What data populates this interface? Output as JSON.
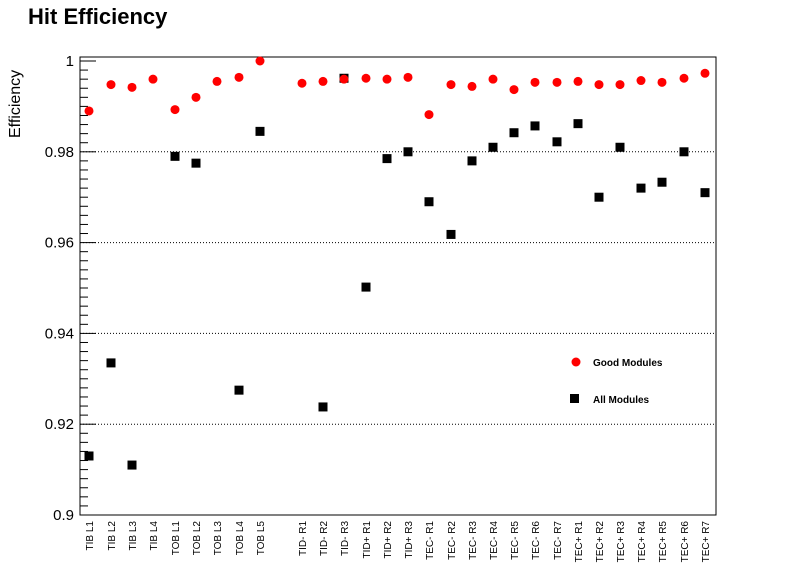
{
  "chart_data": {
    "type": "scatter",
    "title": "Hit Efficiency",
    "ylabel": "Efficiency",
    "xlabel": "",
    "ylim": [
      0.9,
      1.0
    ],
    "yticks": [
      0.9,
      0.92,
      0.94,
      0.96,
      0.98,
      1.0
    ],
    "ytick_labels": [
      "0.9",
      "0.92",
      "0.94",
      "0.96",
      "0.98",
      "1"
    ],
    "grid": "horizontal dotted",
    "legend_position": "right-middle",
    "categories": [
      "TIB L1",
      "TIB L2",
      "TIB L3",
      "TIB L4",
      "TOB L1",
      "TOB L2",
      "TOB L3",
      "TOB L4",
      "TOB L5",
      "TID- R1",
      "TID- R2",
      "TID- R3",
      "TID+ R1",
      "TID+ R2",
      "TID+ R3",
      "TEC- R1",
      "TEC- R2",
      "TEC- R3",
      "TEC- R4",
      "TEC- R5",
      "TEC- R6",
      "TEC- R7",
      "TEC+ R1",
      "TEC+ R2",
      "TEC+ R3",
      "TEC+ R4",
      "TEC+ R5",
      "TEC+ R6",
      "TEC+ R7"
    ],
    "series": [
      {
        "name": "Good Modules",
        "color": "#ff0000",
        "marker": "circle",
        "values": [
          0.989,
          0.9948,
          0.9942,
          0.996,
          0.9893,
          0.992,
          0.9955,
          0.9964,
          1.0,
          0.9951,
          0.9955,
          0.996,
          0.9962,
          0.996,
          0.9964,
          0.9882,
          0.9948,
          0.9944,
          0.996,
          0.9937,
          0.9953,
          0.9953,
          0.9955,
          0.9948,
          0.9948,
          0.9957,
          0.9953,
          0.9962,
          0.9973
        ]
      },
      {
        "name": "All Modules",
        "color": "#000000",
        "marker": "square",
        "values": [
          0.913,
          0.9335,
          0.911,
          null,
          0.979,
          0.9775,
          null,
          0.9275,
          0.9845,
          null,
          0.9238,
          0.9962,
          0.9502,
          0.9785,
          0.98,
          0.969,
          0.9618,
          0.978,
          0.981,
          0.9842,
          0.9857,
          0.9822,
          0.9862,
          0.97,
          0.981,
          0.972,
          0.9733,
          0.98,
          0.971
        ],
        "errors": [
          0,
          0,
          0,
          null,
          0,
          0,
          null,
          0.0008,
          0,
          null,
          0.0009,
          0,
          0,
          0,
          0.0008,
          0,
          0,
          0,
          0,
          0,
          0,
          0.0008,
          0,
          0,
          0,
          0,
          0,
          0,
          0.0009
        ]
      }
    ]
  }
}
